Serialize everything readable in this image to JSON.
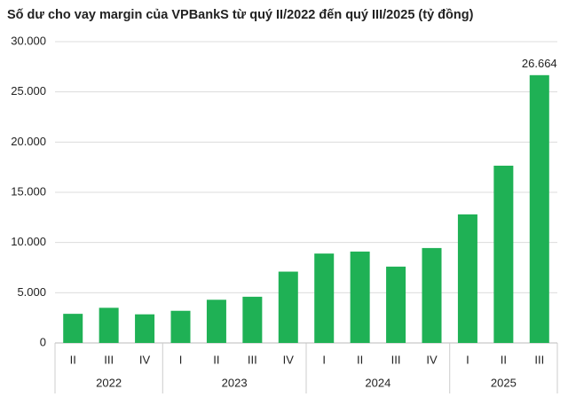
{
  "chart_data": {
    "type": "bar",
    "title": "Số dư cho vay margin của VPBankS từ quý II/2022 đến quý III/2025 (tỷ đồng)",
    "groups": [
      {
        "name": "2022",
        "categories": [
          "II",
          "III",
          "IV"
        ]
      },
      {
        "name": "2023",
        "categories": [
          "I",
          "II",
          "III",
          "IV"
        ]
      },
      {
        "name": "2024",
        "categories": [
          "I",
          "II",
          "III",
          "IV"
        ]
      },
      {
        "name": "2025",
        "categories": [
          "I",
          "II",
          "III"
        ]
      }
    ],
    "values": [
      2900,
      3500,
      2850,
      3200,
      4300,
      4600,
      7100,
      8900,
      9100,
      7600,
      9450,
      12800,
      17650,
      26664
    ],
    "value_labels": [
      null,
      null,
      null,
      null,
      null,
      null,
      null,
      null,
      null,
      null,
      null,
      null,
      null,
      "26.664"
    ],
    "color": "#1fb155",
    "ylim": [
      0,
      30000
    ],
    "yticks": [
      0,
      {
        "value": 5000,
        "label": "5.000"
      },
      {
        "value": 10000,
        "label": "10.000"
      },
      {
        "value": 15000,
        "label": "15.000"
      },
      {
        "value": 20000,
        "label": "20.000"
      },
      {
        "value": 25000,
        "label": "25.000"
      },
      {
        "value": 30000,
        "label": "30.000"
      }
    ],
    "grid": true
  }
}
